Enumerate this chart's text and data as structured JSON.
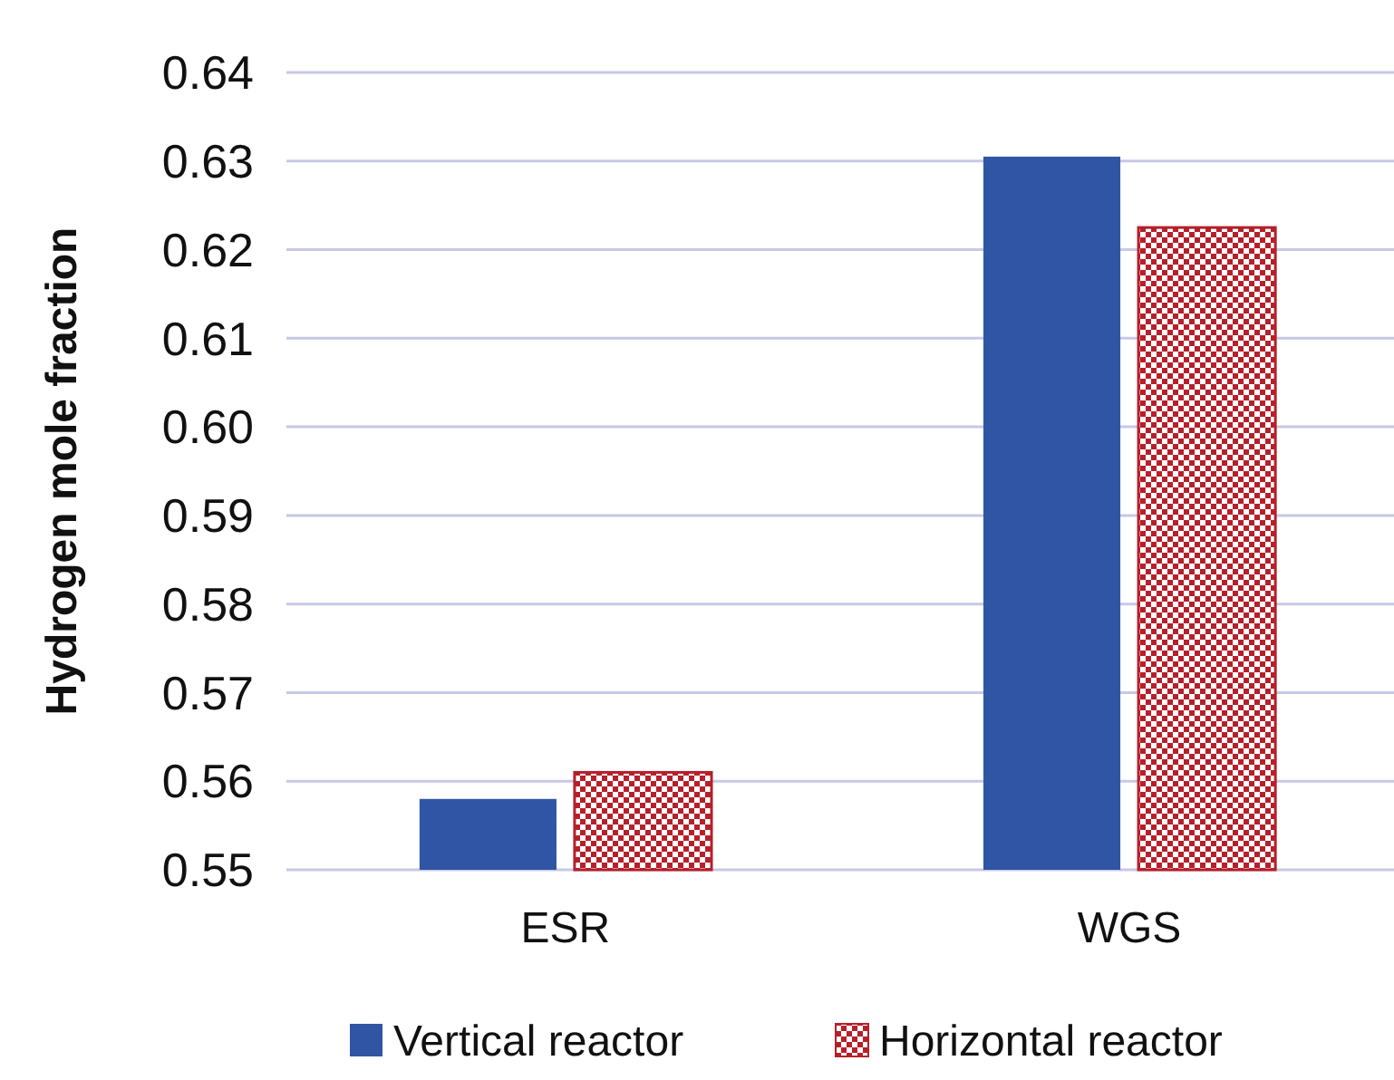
{
  "chart_data": {
    "type": "bar",
    "ylabel": "Hydrogen mole fraction",
    "categories": [
      "ESR",
      "WGS"
    ],
    "series": [
      {
        "name": "Vertical reactor",
        "color": "#2f55a4",
        "values": [
          0.558,
          0.6305
        ]
      },
      {
        "name": "Horizontal reactor",
        "color": "#b5202a",
        "values": [
          0.561,
          0.6225
        ]
      }
    ],
    "ylim": [
      0.55,
      0.64
    ],
    "yticks": [
      {
        "value": 0.55,
        "label": "0.55"
      },
      {
        "value": 0.56,
        "label": "0.56"
      },
      {
        "value": 0.57,
        "label": "0.57"
      },
      {
        "value": 0.58,
        "label": "0.58"
      },
      {
        "value": 0.59,
        "label": "0.59"
      },
      {
        "value": 0.6,
        "label": "0.60"
      },
      {
        "value": 0.61,
        "label": "0.61"
      },
      {
        "value": 0.62,
        "label": "0.62"
      },
      {
        "value": 0.63,
        "label": "0.63"
      },
      {
        "value": 0.64,
        "label": "0.64"
      }
    ],
    "grid": "y",
    "legend": "bottom"
  }
}
